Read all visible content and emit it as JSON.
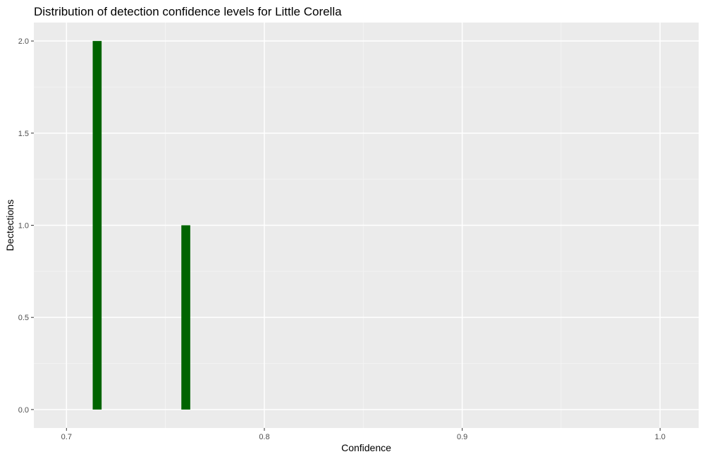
{
  "chart_data": {
    "type": "bar",
    "title": "Distribution of detection confidence levels for Little Corella",
    "xlabel": "Confidence",
    "ylabel": "Dectections",
    "xlim": [
      0.6835,
      1.0195
    ],
    "ylim": [
      -0.1,
      2.1
    ],
    "x_ticks": [
      0.7,
      0.8,
      0.9,
      1.0
    ],
    "x_tick_labels": [
      "0.7",
      "0.8",
      "0.9",
      "1.0"
    ],
    "y_ticks": [
      0.0,
      0.5,
      1.0,
      1.5,
      2.0
    ],
    "y_tick_labels": [
      "0.0",
      "0.5",
      "1.0",
      "1.5",
      "2.0"
    ],
    "bin_width": 0.0045,
    "bars": [
      {
        "x": 0.7155,
        "value": 2
      },
      {
        "x": 0.7603,
        "value": 1
      }
    ],
    "bar_color": "#006400",
    "panel_background": "#ebebeb",
    "grid": true
  }
}
